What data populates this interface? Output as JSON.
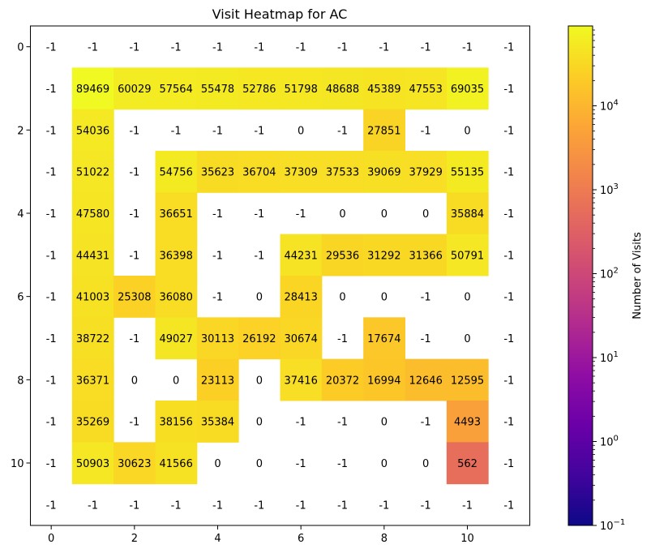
{
  "chart_data": {
    "type": "heatmap",
    "title": "Visit Heatmap for AC",
    "x_ticks": [
      0,
      2,
      4,
      6,
      8,
      10
    ],
    "y_ticks": [
      0,
      2,
      4,
      6,
      8,
      10
    ],
    "colorbar": {
      "label": "Number of Visits",
      "scale": "log",
      "range": [
        0.1,
        89469
      ],
      "colormap": "plasma",
      "ticks": [
        {
          "base": "10",
          "exp": "−1",
          "value": 0.1
        },
        {
          "base": "10",
          "exp": "0",
          "value": 1
        },
        {
          "base": "10",
          "exp": "1",
          "value": 10
        },
        {
          "base": "10",
          "exp": "2",
          "value": 100
        },
        {
          "base": "10",
          "exp": "3",
          "value": 1000
        },
        {
          "base": "10",
          "exp": "4",
          "value": 10000
        }
      ]
    },
    "masked_values": "values <= 0 shown as white cells",
    "grid": [
      [
        -1,
        -1,
        -1,
        -1,
        -1,
        -1,
        -1,
        -1,
        -1,
        -1,
        -1,
        -1
      ],
      [
        -1,
        89469,
        60029,
        57564,
        55478,
        52786,
        51798,
        48688,
        45389,
        47553,
        69035,
        -1
      ],
      [
        -1,
        54036,
        -1,
        -1,
        -1,
        -1,
        0,
        -1,
        27851,
        -1,
        0,
        -1
      ],
      [
        -1,
        51022,
        -1,
        54756,
        35623,
        36704,
        37309,
        37533,
        39069,
        37929,
        55135,
        -1
      ],
      [
        -1,
        47580,
        -1,
        36651,
        -1,
        -1,
        -1,
        0,
        0,
        0,
        35884,
        -1
      ],
      [
        -1,
        44431,
        -1,
        36398,
        -1,
        -1,
        44231,
        29536,
        31292,
        31366,
        50791,
        -1
      ],
      [
        -1,
        41003,
        25308,
        36080,
        -1,
        0,
        28413,
        0,
        0,
        -1,
        0,
        -1
      ],
      [
        -1,
        38722,
        -1,
        49027,
        30113,
        26192,
        30674,
        -1,
        17674,
        -1,
        0,
        -1
      ],
      [
        -1,
        36371,
        0,
        0,
        23113,
        0,
        37416,
        20372,
        16994,
        12646,
        12595,
        -1
      ],
      [
        -1,
        35269,
        -1,
        38156,
        35384,
        0,
        -1,
        -1,
        0,
        -1,
        4493,
        -1
      ],
      [
        -1,
        50903,
        30623,
        41566,
        0,
        0,
        -1,
        -1,
        0,
        0,
        562,
        -1
      ],
      [
        -1,
        -1,
        -1,
        -1,
        -1,
        -1,
        -1,
        -1,
        -1,
        -1,
        -1,
        -1
      ]
    ]
  }
}
